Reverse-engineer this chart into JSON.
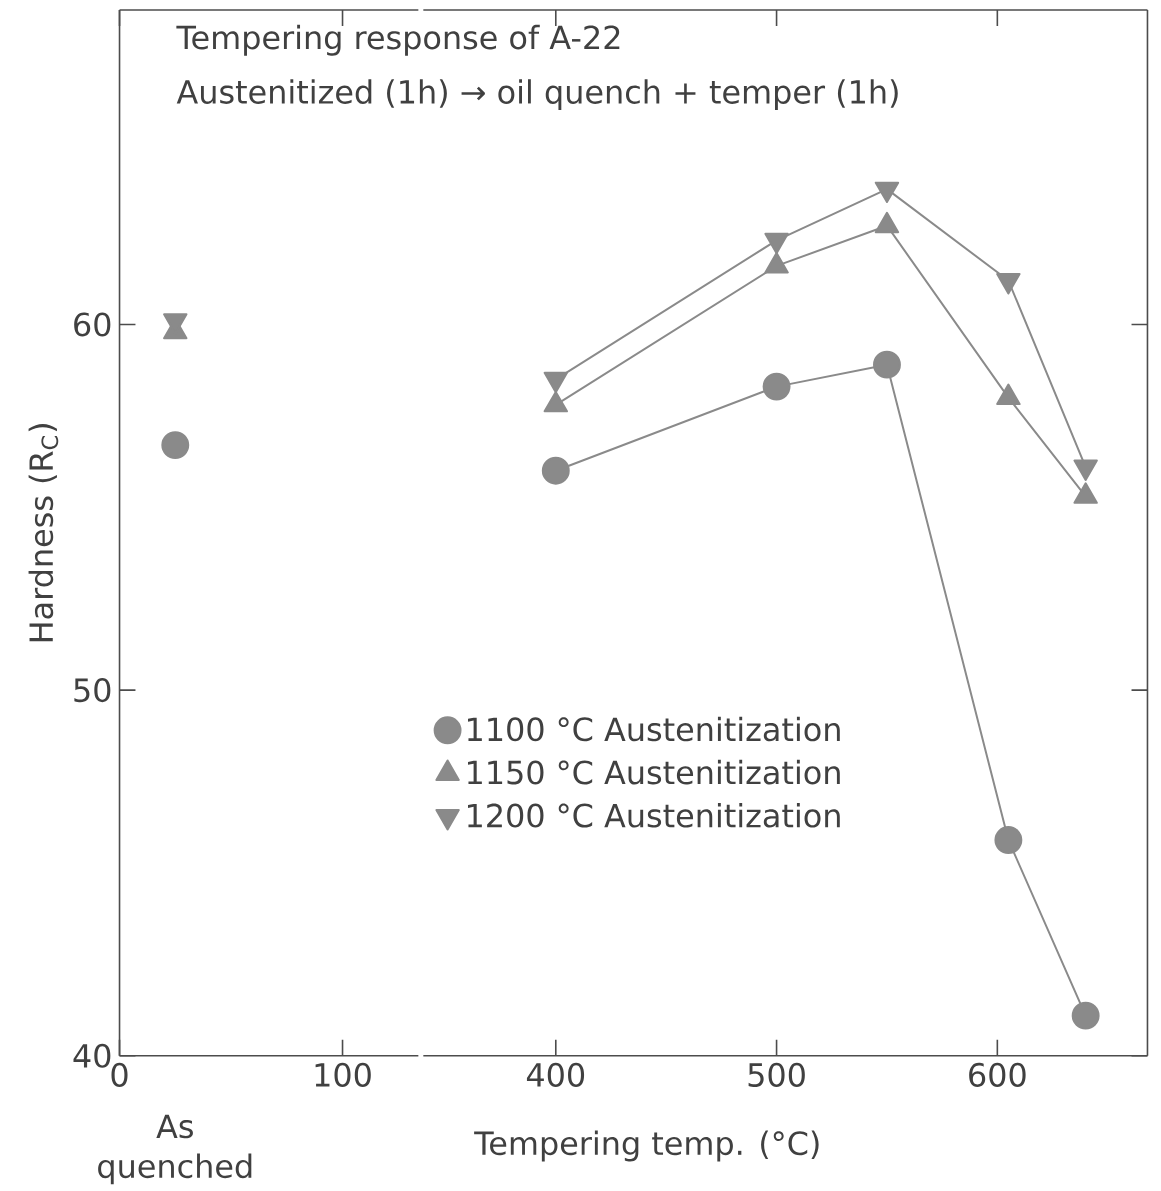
{
  "chart_data": [
    {
      "type": "scatter",
      "title": "Tempering response of A-22",
      "subtitle": "Austenitized (1h) → oil quench + temper (1h)",
      "ylabel": "Hardness (R$_{C}$)",
      "annotations": [
        "As quenched"
      ],
      "xlim": [
        0,
        134
      ],
      "ylim": [
        40,
        68.6
      ],
      "xticks": [
        0,
        100
      ],
      "yticks": [
        40,
        50,
        60
      ],
      "series": [
        {
          "color": "#8a8a8a",
          "marker": "circle",
          "x": [
            25
          ],
          "values": [
            56.7
          ]
        },
        {
          "color": "#8a8a8a",
          "marker": "triangle",
          "x": [
            25
          ],
          "values": [
            59.8
          ]
        },
        {
          "color": "#8a8a8a",
          "marker": "triangle_down",
          "x": [
            25
          ],
          "values": [
            60.1
          ]
        }
      ]
    },
    {
      "type": "line",
      "xlabel": "Tempering temp. (°C)",
      "legend": "left",
      "line_style": "solid",
      "xlim": [
        340,
        668
      ],
      "ylim": [
        40,
        68.6
      ],
      "xticks": [
        400,
        500,
        600
      ],
      "yticks": [
        40,
        50,
        60
      ],
      "tick_labels": "x",
      "series": [
        {
          "name": "1100 °C Austenitization",
          "color": "#8a8a8a",
          "marker": "circle",
          "x": [
            400,
            500,
            550,
            605,
            640
          ],
          "values": [
            56.0,
            58.3,
            58.9,
            45.9,
            41.1
          ]
        },
        {
          "name": "1150 °C Austenitization",
          "color": "#8a8a8a",
          "marker": "triangle",
          "x": [
            400,
            500,
            550,
            605,
            640
          ],
          "values": [
            57.8,
            61.6,
            62.7,
            58.0,
            55.3
          ]
        },
        {
          "name": "1200 °C Austenitization",
          "color": "#8a8a8a",
          "marker": "triangle_down",
          "x": [
            400,
            500,
            550,
            605,
            640
          ],
          "values": [
            58.5,
            62.3,
            63.7,
            61.2,
            56.1
          ]
        }
      ]
    }
  ]
}
